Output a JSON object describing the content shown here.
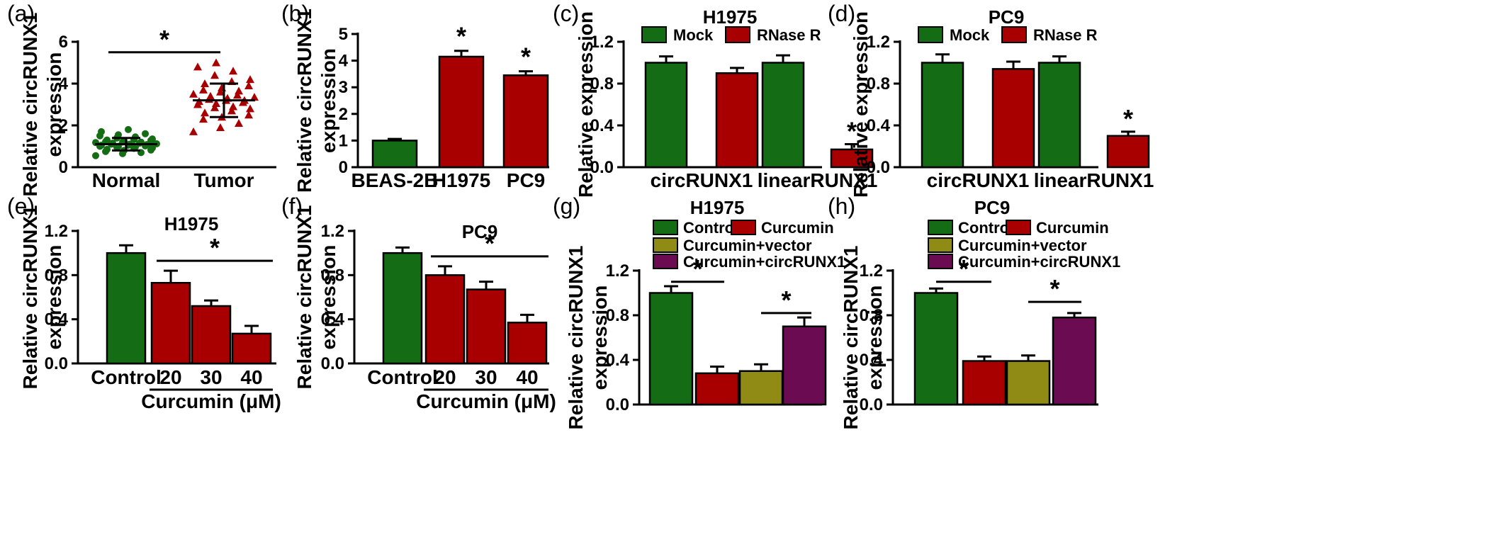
{
  "colors": {
    "green": "#146d14",
    "red": "#a80000",
    "olive": "#8f8b14",
    "purple": "#6b0b52"
  },
  "chart_data": [
    {
      "id": "a",
      "panel_label": "(a)",
      "type": "scatter",
      "title": "",
      "xlabel": "",
      "ylabel": [
        "Relative circRUNX1",
        "expression"
      ],
      "ylim": [
        0,
        6
      ],
      "yticks": [
        "0",
        "2",
        "4",
        "6"
      ],
      "categories": [
        "Normal",
        "Tumor"
      ],
      "groups": [
        {
          "name": "Normal",
          "color": "green",
          "marker": "circle",
          "mean": 1.1,
          "sd": 0.3,
          "values": [
            0.55,
            0.65,
            0.7,
            0.75,
            0.8,
            0.82,
            0.85,
            0.9,
            0.92,
            0.95,
            0.97,
            1.0,
            1.0,
            1.02,
            1.05,
            1.05,
            1.08,
            1.1,
            1.1,
            1.12,
            1.15,
            1.15,
            1.18,
            1.2,
            1.2,
            1.22,
            1.25,
            1.28,
            1.3,
            1.32,
            1.35,
            1.4,
            1.45,
            1.5,
            1.55,
            1.6,
            1.7,
            1.8
          ]
        },
        {
          "name": "Tumor",
          "color": "red",
          "marker": "triangle",
          "mean": 3.2,
          "sd": 0.8,
          "values": [
            1.7,
            1.9,
            2.1,
            2.3,
            2.4,
            2.5,
            2.6,
            2.7,
            2.8,
            2.85,
            2.9,
            3.0,
            3.05,
            3.1,
            3.15,
            3.2,
            3.2,
            3.25,
            3.3,
            3.35,
            3.4,
            3.45,
            3.5,
            3.6,
            3.65,
            3.7,
            3.8,
            3.9,
            4.0,
            4.1,
            4.2,
            4.4,
            4.6,
            4.8,
            5.0
          ]
        }
      ],
      "significance": [
        {
          "from": 0,
          "to": 1,
          "y": 5.5,
          "label": "*"
        }
      ]
    },
    {
      "id": "b",
      "panel_label": "(b)",
      "type": "bar",
      "title": "",
      "ylabel": [
        "Relative circRUNX1",
        "expression"
      ],
      "ylim": [
        0,
        5
      ],
      "yticks": [
        "0",
        "1",
        "2",
        "3",
        "4",
        "5"
      ],
      "categories": [
        "BEAS-2B",
        "H1975",
        "PC9"
      ],
      "bars": [
        {
          "value": 1.0,
          "err": 0.06,
          "color": "green",
          "label": ""
        },
        {
          "value": 4.15,
          "err": 0.22,
          "color": "red",
          "label": "*"
        },
        {
          "value": 3.45,
          "err": 0.15,
          "color": "red",
          "label": "*"
        }
      ]
    },
    {
      "id": "c",
      "panel_label": "(c)",
      "type": "bar",
      "title": "H1975",
      "ylabel": [
        "Relative expression"
      ],
      "ylim": [
        0,
        1.2
      ],
      "yticks": [
        "0.0",
        "0.4",
        "0.8",
        "1.2"
      ],
      "categories": [
        "circRUNX1",
        "linearRUNX1"
      ],
      "legend": [
        {
          "label": "Mock",
          "color": "green"
        },
        {
          "label": "RNase R",
          "color": "red"
        }
      ],
      "series": [
        {
          "name": "Mock",
          "color": "green",
          "values": [
            1.0,
            1.0
          ],
          "err": [
            0.06,
            0.07
          ]
        },
        {
          "name": "RNase R",
          "color": "red",
          "values": [
            0.9,
            0.17
          ],
          "err": [
            0.05,
            0.05
          ],
          "labels": [
            "",
            "*"
          ]
        }
      ]
    },
    {
      "id": "d",
      "panel_label": "(d)",
      "type": "bar",
      "title": "PC9",
      "ylabel": [
        "Relative expression"
      ],
      "ylim": [
        0,
        1.2
      ],
      "yticks": [
        "0.0",
        "0.4",
        "0.8",
        "1.2"
      ],
      "categories": [
        "circRUNX1",
        "linearRUNX1"
      ],
      "legend": [
        {
          "label": "Mock",
          "color": "green"
        },
        {
          "label": "RNase R",
          "color": "red"
        }
      ],
      "series": [
        {
          "name": "Mock",
          "color": "green",
          "values": [
            1.0,
            1.0
          ],
          "err": [
            0.08,
            0.06
          ]
        },
        {
          "name": "RNase R",
          "color": "red",
          "values": [
            0.94,
            0.3
          ],
          "err": [
            0.07,
            0.04
          ],
          "labels": [
            "",
            "*"
          ]
        }
      ]
    },
    {
      "id": "e",
      "panel_label": "(e)",
      "type": "bar",
      "title": "H1975",
      "ylabel": [
        "Relative circRUNX1",
        "expression"
      ],
      "ylim": [
        0,
        1.2
      ],
      "yticks": [
        "0.0",
        "0.4",
        "0.8",
        "1.2"
      ],
      "categories": [
        "Control",
        "20",
        "30",
        "40"
      ],
      "group_label": "Curcumin (μM)",
      "bars": [
        {
          "value": 1.0,
          "err": 0.07,
          "color": "green",
          "label": ""
        },
        {
          "value": 0.73,
          "err": 0.11,
          "color": "red",
          "label": ""
        },
        {
          "value": 0.52,
          "err": 0.05,
          "color": "red",
          "label": ""
        },
        {
          "value": 0.27,
          "err": 0.07,
          "color": "red",
          "label": ""
        }
      ],
      "significance": [
        {
          "from": 1,
          "to": 3,
          "y": 0.93,
          "label": "*"
        }
      ]
    },
    {
      "id": "f",
      "panel_label": "(f)",
      "type": "bar",
      "title": "PC9",
      "ylabel": [
        "Relative circRUNX1",
        "expression"
      ],
      "ylim": [
        0,
        1.2
      ],
      "yticks": [
        "0.0",
        "0.4",
        "0.8",
        "1.2"
      ],
      "categories": [
        "Control",
        "20",
        "30",
        "40"
      ],
      "group_label": "Curcumin (μM)",
      "bars": [
        {
          "value": 1.0,
          "err": 0.05,
          "color": "green",
          "label": ""
        },
        {
          "value": 0.8,
          "err": 0.08,
          "color": "red",
          "label": ""
        },
        {
          "value": 0.67,
          "err": 0.07,
          "color": "red",
          "label": ""
        },
        {
          "value": 0.37,
          "err": 0.07,
          "color": "red",
          "label": ""
        }
      ],
      "significance": [
        {
          "from": 1,
          "to": 3,
          "y": 0.97,
          "label": "*"
        }
      ]
    },
    {
      "id": "g",
      "panel_label": "(g)",
      "type": "bar",
      "title": "H1975",
      "ylabel": [
        "Relative circRUNX1",
        "expression"
      ],
      "ylim": [
        0,
        1.2
      ],
      "yticks": [
        "0.0",
        "0.4",
        "0.8",
        "1.2"
      ],
      "categories": [
        "Control",
        "Curcumin",
        "Curcumin+vector",
        "Curcumin+circRUNX1"
      ],
      "legend": [
        {
          "label": "Control",
          "color": "green"
        },
        {
          "label": "Curcumin",
          "color": "red"
        },
        {
          "label": "Curcumin+vector",
          "color": "olive"
        },
        {
          "label": "Curcumin+circRUNX1",
          "color": "purple"
        }
      ],
      "bars": [
        {
          "value": 1.0,
          "err": 0.06,
          "color": "green",
          "label": ""
        },
        {
          "value": 0.28,
          "err": 0.06,
          "color": "red",
          "label": ""
        },
        {
          "value": 0.3,
          "err": 0.06,
          "color": "olive",
          "label": ""
        },
        {
          "value": 0.7,
          "err": 0.08,
          "color": "purple",
          "label": ""
        }
      ],
      "significance": [
        {
          "from": 0,
          "to": 1,
          "y": 1.1,
          "label": "*"
        },
        {
          "from": 2,
          "to": 3,
          "y": 0.82,
          "label": "*"
        }
      ]
    },
    {
      "id": "h",
      "panel_label": "(h)",
      "type": "bar",
      "title": "PC9",
      "ylabel": [
        "Relative circRUNX1",
        "expression"
      ],
      "ylim": [
        0,
        1.2
      ],
      "yticks": [
        "0.0",
        "0.4",
        "0.8",
        "1.2"
      ],
      "categories": [
        "Control",
        "Curcumin",
        "Curcumin+vector",
        "Curcumin+circRUNX1"
      ],
      "legend": [
        {
          "label": "Control",
          "color": "green"
        },
        {
          "label": "Curcumin",
          "color": "red"
        },
        {
          "label": "Curcumin+vector",
          "color": "olive"
        },
        {
          "label": "Curcumin+circRUNX1",
          "color": "purple"
        }
      ],
      "bars": [
        {
          "value": 1.0,
          "err": 0.04,
          "color": "green",
          "label": ""
        },
        {
          "value": 0.39,
          "err": 0.04,
          "color": "red",
          "label": ""
        },
        {
          "value": 0.39,
          "err": 0.05,
          "color": "olive",
          "label": ""
        },
        {
          "value": 0.78,
          "err": 0.04,
          "color": "purple",
          "label": ""
        }
      ],
      "significance": [
        {
          "from": 0,
          "to": 1,
          "y": 1.1,
          "label": "*"
        },
        {
          "from": 2,
          "to": 3,
          "y": 0.92,
          "label": "*"
        }
      ]
    }
  ]
}
